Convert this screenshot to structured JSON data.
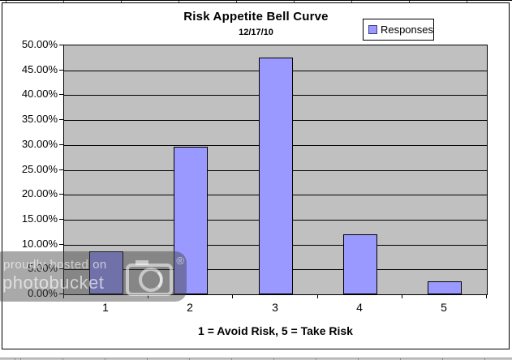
{
  "chart": {
    "title": "Risk Appetite Bell Curve",
    "subtitle": "12/17/10",
    "x_axis_title": "1 = Avoid Risk, 5 = Take Risk",
    "legend": {
      "label": "Responses"
    }
  },
  "chart_data": {
    "type": "bar",
    "title": "Risk Appetite Bell Curve",
    "subtitle": "12/17/10",
    "categories": [
      "1",
      "2",
      "3",
      "4",
      "5"
    ],
    "series": [
      {
        "name": "Responses",
        "values": [
          8.7,
          29.7,
          47.6,
          12.0,
          2.6
        ]
      }
    ],
    "xlabel": "1 = Avoid Risk, 5 = Take Risk",
    "ylabel": "",
    "ylim": [
      0,
      50
    ],
    "y_tick_step": 5,
    "y_tick_labels": [
      "50.00%",
      "45.00%",
      "40.00%",
      "35.00%",
      "30.00%",
      "25.00%",
      "20.00%",
      "15.00%",
      "10.00%",
      "5.00%",
      "0.00%"
    ],
    "grid": true,
    "legend_position": "top-right",
    "colors": {
      "bar_fill": "#9999FF",
      "bar_border": "#000000",
      "plot_background": "#C0C0C0",
      "gridline": "#000000",
      "chart_border": "#000000"
    }
  },
  "watermark": {
    "line1": "proudly hosted on",
    "line2": "photobucket",
    "registered_mark": "®",
    "icon": "camera-icon"
  }
}
